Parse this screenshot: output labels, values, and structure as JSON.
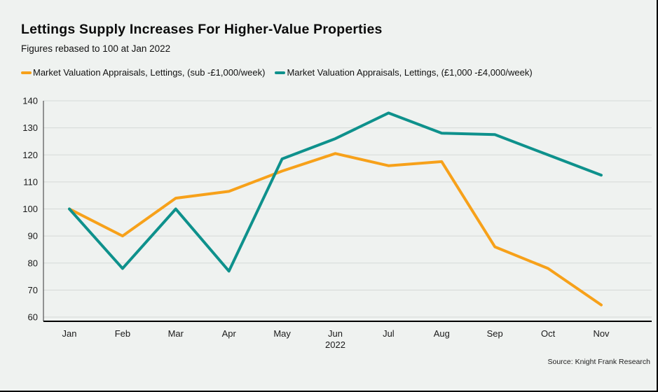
{
  "header": {
    "title": "Lettings Supply Increases For Higher-Value Properties",
    "subtitle": "Figures rebased to 100 at Jan 2022"
  },
  "source": "Source: Knight Frank Research",
  "colors": {
    "background": "#eff2f0",
    "grid": "#d5d9d7",
    "axis": "#000000",
    "text": "#1a1a1a",
    "orange": "#f7a11a",
    "teal": "#0e918c"
  },
  "chart_data": {
    "type": "line",
    "categories": [
      "Jan",
      "Feb",
      "Mar",
      "Apr",
      "May",
      "Jun",
      "Jul",
      "Aug",
      "Sep",
      "Oct",
      "Nov"
    ],
    "x_axis_year_label": "2022",
    "series": [
      {
        "name": "Market Valuation Appraisals, Lettings, (sub -£1,000/week)",
        "color": "#f7a11a",
        "values": [
          100,
          90,
          104,
          106.5,
          114,
          120.5,
          116,
          117.5,
          86,
          78,
          64.5
        ]
      },
      {
        "name": "Market Valuation Appraisals, Lettings, (£1,000 -£4,000/week)",
        "color": "#0e918c",
        "values": [
          100,
          78,
          100,
          77,
          118.5,
          126,
          135.5,
          128,
          127.5,
          120,
          112.5
        ]
      }
    ],
    "ylim": [
      60,
      140
    ],
    "y_ticks": [
      140,
      130,
      120,
      110,
      100,
      90,
      80,
      70,
      60
    ],
    "grid": true,
    "legend_position": "top-left"
  }
}
